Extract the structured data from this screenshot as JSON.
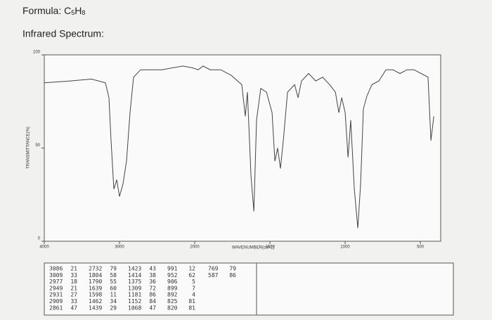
{
  "formula": {
    "label": "Formula:",
    "parts": [
      "C",
      "5",
      "H",
      "8"
    ]
  },
  "heading": "Infrared Spectrum:",
  "chart_data": {
    "type": "line",
    "x_label": "WAVENUMBER(cm-1)",
    "y_label": "TRANSMITTANCE(%)",
    "xlim": [
      4000,
      365
    ],
    "xticks": [
      4000,
      3000,
      2000,
      1500,
      1000,
      500
    ],
    "ylim": [
      0,
      100
    ],
    "yticks": [
      0,
      50,
      100
    ],
    "series": [
      {
        "name": "spectrum",
        "color": "#444444",
        "x": [
          4000,
          3654,
          3374,
          3187,
          3140,
          3112,
          3075,
          3037,
          3000,
          2953,
          2907,
          2860,
          2813,
          2720,
          2439,
          2159,
          2028,
          1977,
          1944,
          1897,
          1827,
          1757,
          1687,
          1664,
          1650,
          1626,
          1607,
          1589,
          1561,
          1523,
          1486,
          1467,
          1449,
          1430,
          1411,
          1383,
          1336,
          1313,
          1290,
          1243,
          1196,
          1150,
          1103,
          1065,
          1042,
          1023,
          1000,
          981,
          963,
          939,
          916,
          897,
          879,
          855,
          822,
          776,
          729,
          682,
          636,
          589,
          542,
          495,
          449,
          430,
          411
        ],
        "values": [
          85,
          86,
          87,
          85,
          77,
          54,
          28,
          33,
          24,
          31,
          43,
          69,
          88,
          92,
          92,
          94,
          93,
          92,
          94,
          92,
          92,
          89,
          84,
          67,
          80,
          35,
          16,
          65,
          82,
          80,
          69,
          43,
          50,
          39,
          54,
          80,
          84,
          77,
          86,
          90,
          86,
          88,
          84,
          80,
          69,
          77,
          69,
          45,
          65,
          28,
          7,
          31,
          71,
          78,
          84,
          86,
          92,
          92,
          90,
          92,
          92,
          90,
          88,
          54,
          67
        ]
      }
    ]
  },
  "peak_table": {
    "columns": [
      [
        [
          "3086",
          "21"
        ],
        [
          "3009",
          "33"
        ],
        [
          "2977",
          "18"
        ],
        [
          "2949",
          "21"
        ],
        [
          "2931",
          "27"
        ],
        [
          "2909",
          "33"
        ],
        [
          "2861",
          "47"
        ]
      ],
      [
        [
          "2732",
          "79"
        ],
        [
          "1804",
          "58"
        ],
        [
          "1790",
          "55"
        ],
        [
          "1639",
          "60"
        ],
        [
          "1598",
          "11"
        ],
        [
          "1462",
          "34"
        ],
        [
          "1439",
          "29"
        ]
      ],
      [
        [
          "1423",
          "43"
        ],
        [
          "1414",
          "38"
        ],
        [
          "1375",
          "36"
        ],
        [
          "1309",
          "72"
        ],
        [
          "1181",
          "86"
        ],
        [
          "1152",
          "84"
        ],
        [
          "1068",
          "47"
        ]
      ],
      [
        [
          "991",
          "12"
        ],
        [
          "952",
          "62"
        ],
        [
          "906",
          "5"
        ],
        [
          "899",
          "7"
        ],
        [
          "892",
          "4"
        ],
        [
          "825",
          "81"
        ],
        [
          "820",
          "81"
        ]
      ],
      [
        [
          "769",
          "79"
        ],
        [
          "587",
          "86"
        ]
      ]
    ]
  }
}
